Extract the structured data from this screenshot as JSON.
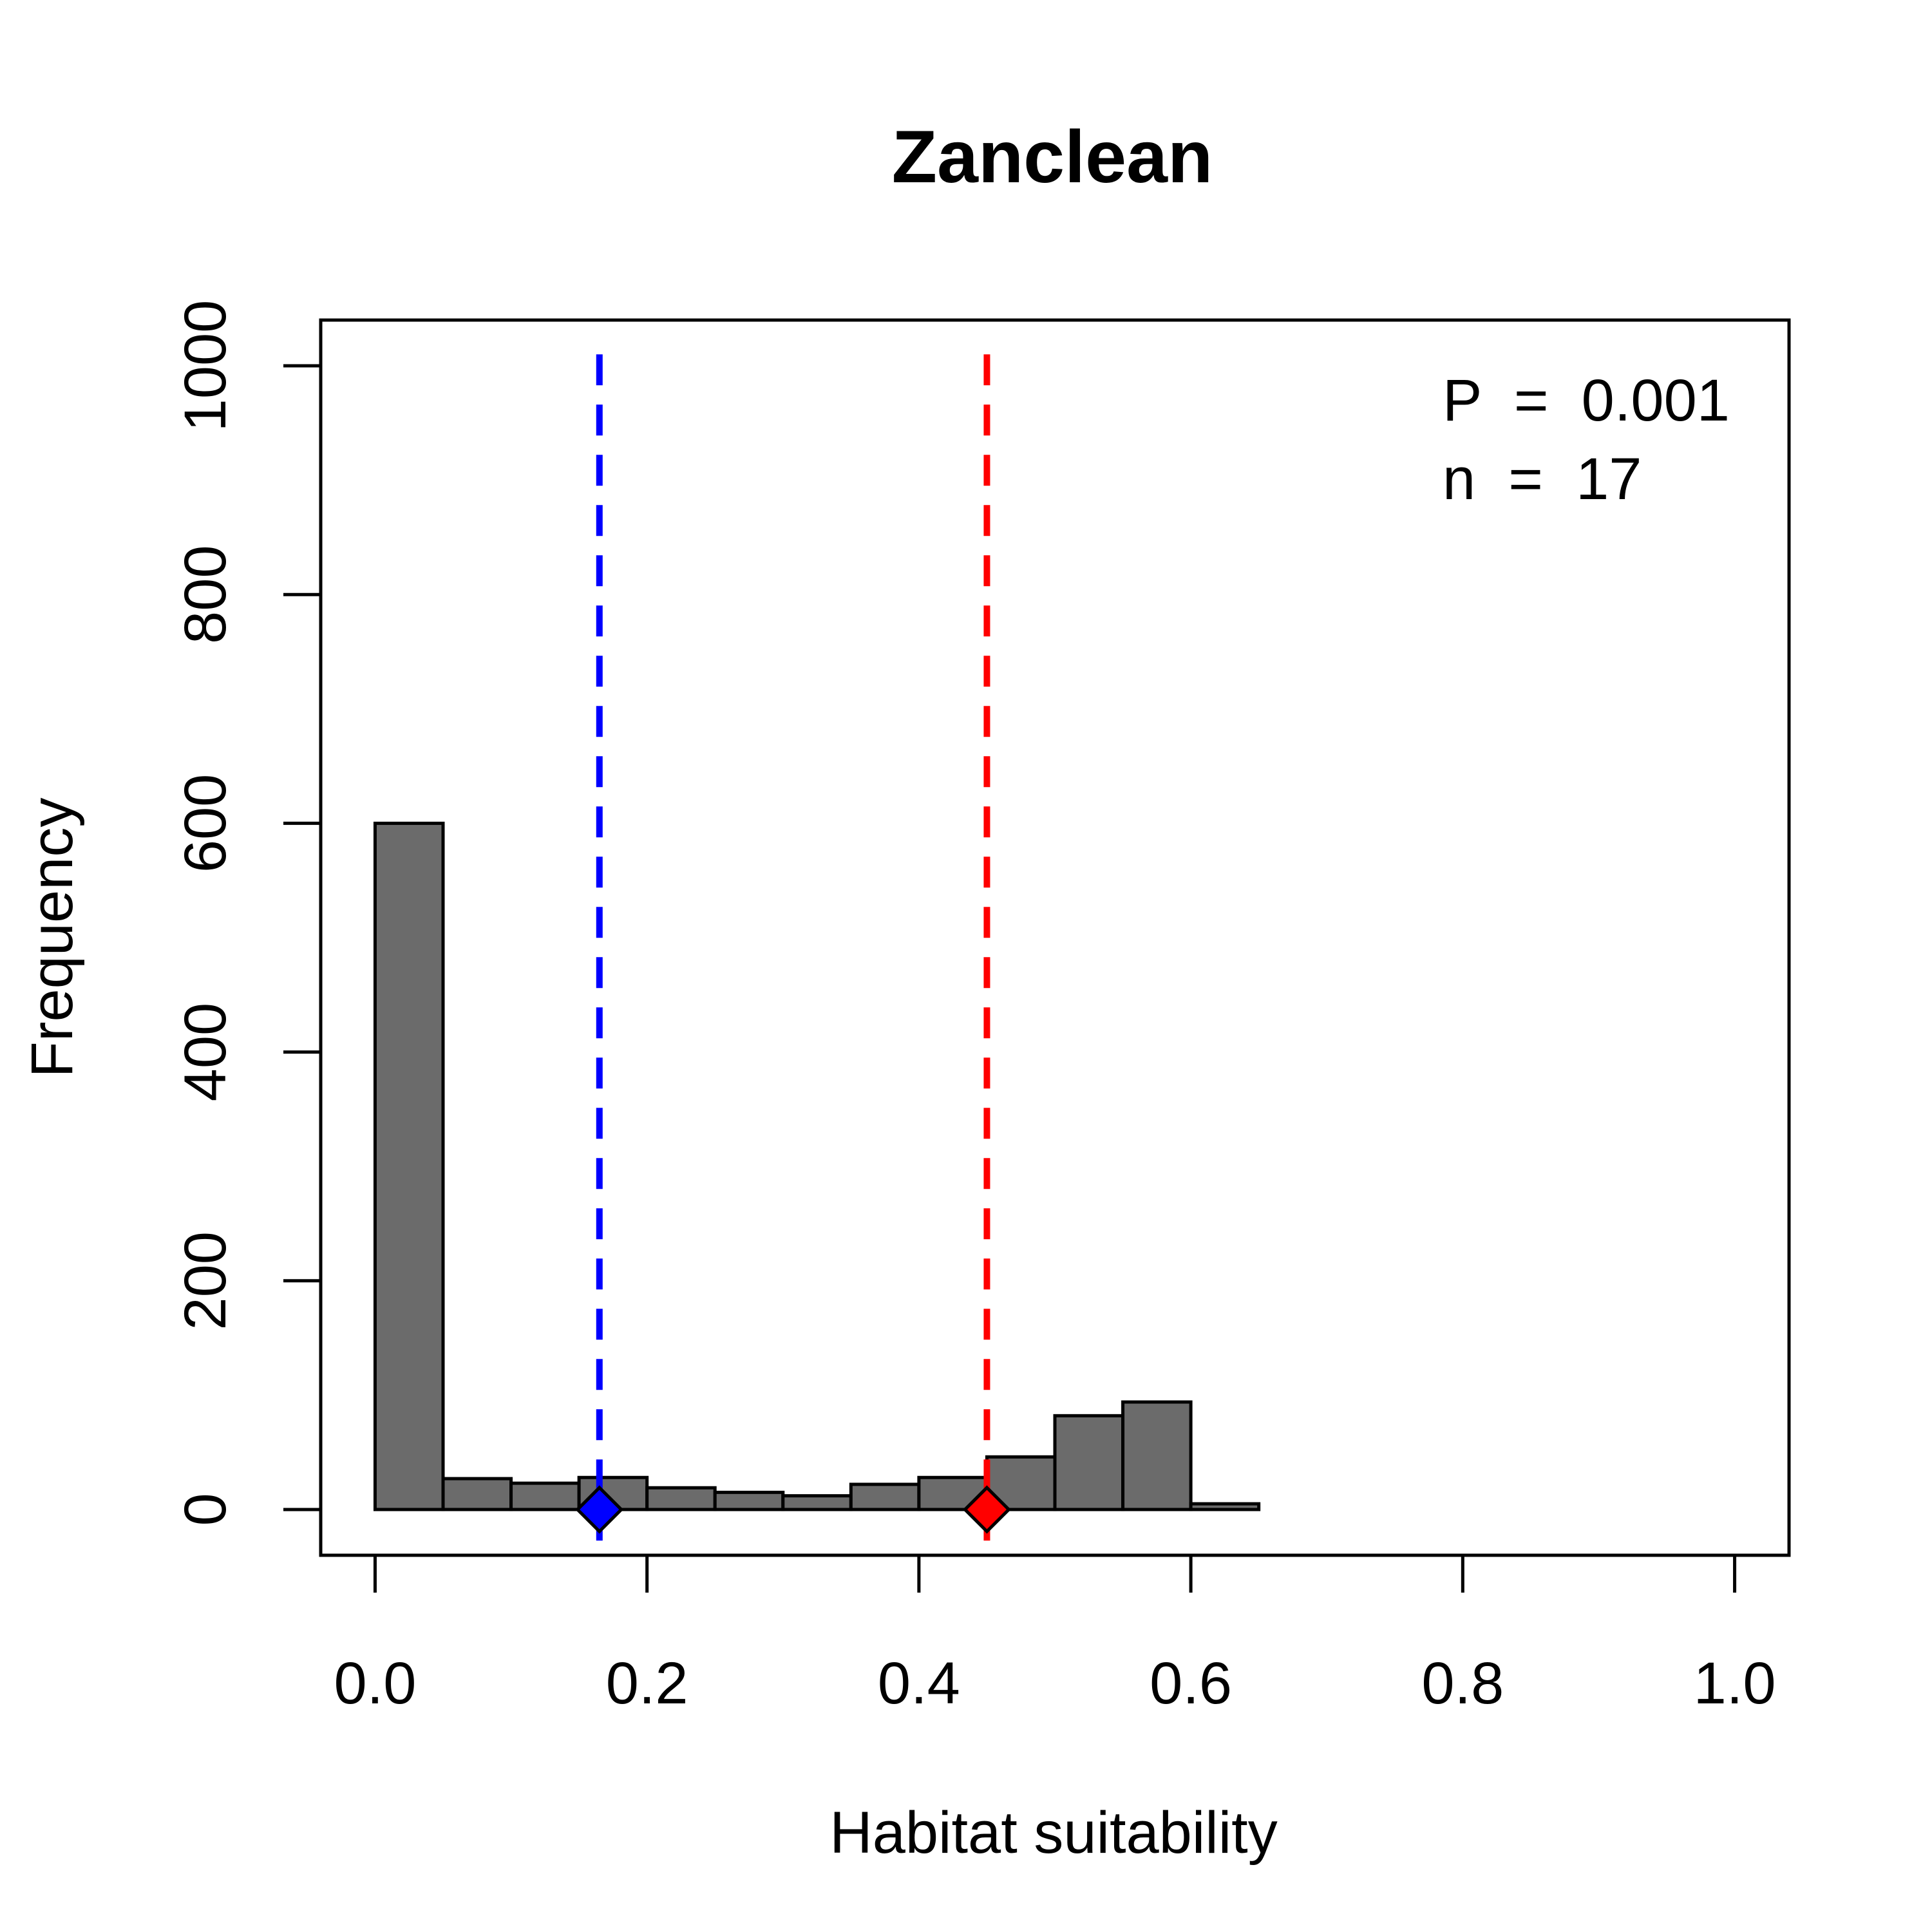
{
  "chart_data": {
    "type": "bar",
    "title": "Zanclean",
    "xlabel": "Habitat suitability",
    "ylabel": "Frequency",
    "xlim": [
      -0.04,
      1.04
    ],
    "ylim": [
      -40,
      1040
    ],
    "x_ticks": [
      "0.0",
      "0.2",
      "0.4",
      "0.6",
      "0.8",
      "1.0"
    ],
    "y_ticks": [
      "0",
      "200",
      "400",
      "600",
      "800",
      "1000"
    ],
    "bin_width": 0.05,
    "bins": [
      {
        "start": 0.0,
        "count": 600
      },
      {
        "start": 0.05,
        "count": 27
      },
      {
        "start": 0.1,
        "count": 23
      },
      {
        "start": 0.15,
        "count": 28
      },
      {
        "start": 0.2,
        "count": 19
      },
      {
        "start": 0.25,
        "count": 15
      },
      {
        "start": 0.3,
        "count": 12
      },
      {
        "start": 0.35,
        "count": 22
      },
      {
        "start": 0.4,
        "count": 28
      },
      {
        "start": 0.45,
        "count": 46
      },
      {
        "start": 0.5,
        "count": 82
      },
      {
        "start": 0.55,
        "count": 94
      },
      {
        "start": 0.6,
        "count": 5
      }
    ],
    "bar_color": "#6b6b6b",
    "reference_lines": [
      {
        "x": 0.165,
        "color": "#0000ff",
        "style": "dashed",
        "marker": "diamond"
      },
      {
        "x": 0.45,
        "color": "#ff0000",
        "style": "dashed",
        "marker": "diamond"
      }
    ],
    "annotations": {
      "p_text": "P  =  0.001",
      "n_text": "n  =  17"
    },
    "grid": false
  }
}
